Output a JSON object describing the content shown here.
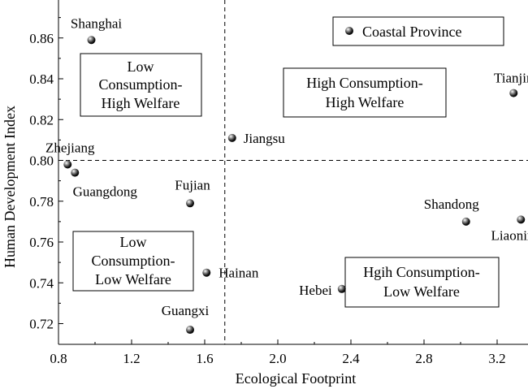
{
  "chart_data": {
    "type": "scatter",
    "xlabel": "Ecological Footprint",
    "ylabel": "Human Development Index",
    "xlim": [
      0.8,
      3.5
    ],
    "ylim": [
      0.71,
      0.875
    ],
    "x_ticks": [
      0.8,
      1.2,
      1.6,
      2.0,
      2.4,
      2.8,
      3.2
    ],
    "x_tick_labels": [
      "0.8",
      "1.2",
      "1.6",
      "2.0",
      "2.4",
      "2.8",
      "3.2"
    ],
    "y_ticks": [
      0.72,
      0.74,
      0.76,
      0.78,
      0.8,
      0.82,
      0.84,
      0.86
    ],
    "y_tick_labels": [
      "0.72",
      "0.74",
      "0.76",
      "0.78",
      "0.80",
      "0.82",
      "0.84",
      "0.86"
    ],
    "thresholds": {
      "x": 1.71,
      "y": 0.8
    },
    "legend": {
      "label": "Coastal Province",
      "placement": "top-right"
    },
    "points": [
      {
        "name": "Shanghai",
        "x": 0.98,
        "y": 0.859
      },
      {
        "name": "Tianjin",
        "x": 3.29,
        "y": 0.833
      },
      {
        "name": "Jiangsu",
        "x": 1.75,
        "y": 0.811
      },
      {
        "name": "Zhejiang",
        "x": 0.85,
        "y": 0.798
      },
      {
        "name": "Guangdong",
        "x": 0.89,
        "y": 0.794
      },
      {
        "name": "Fujian",
        "x": 1.52,
        "y": 0.779
      },
      {
        "name": "Shandong",
        "x": 3.03,
        "y": 0.77
      },
      {
        "name": "Liaoning",
        "x": 3.33,
        "y": 0.771
      },
      {
        "name": "Hainan",
        "x": 1.61,
        "y": 0.745
      },
      {
        "name": "Hebei",
        "x": 2.35,
        "y": 0.737
      },
      {
        "name": "Guangxi",
        "x": 1.52,
        "y": 0.717
      }
    ],
    "quadrants": [
      {
        "lines": [
          "Low",
          "Consumption-",
          "High Welfare"
        ]
      },
      {
        "lines": [
          "High Consumption-",
          "High Welfare"
        ]
      },
      {
        "lines": [
          "Low",
          "Consumption-",
          "Low Welfare"
        ]
      },
      {
        "lines": [
          "Hgih Consumption-",
          "Low Welfare"
        ]
      }
    ]
  }
}
